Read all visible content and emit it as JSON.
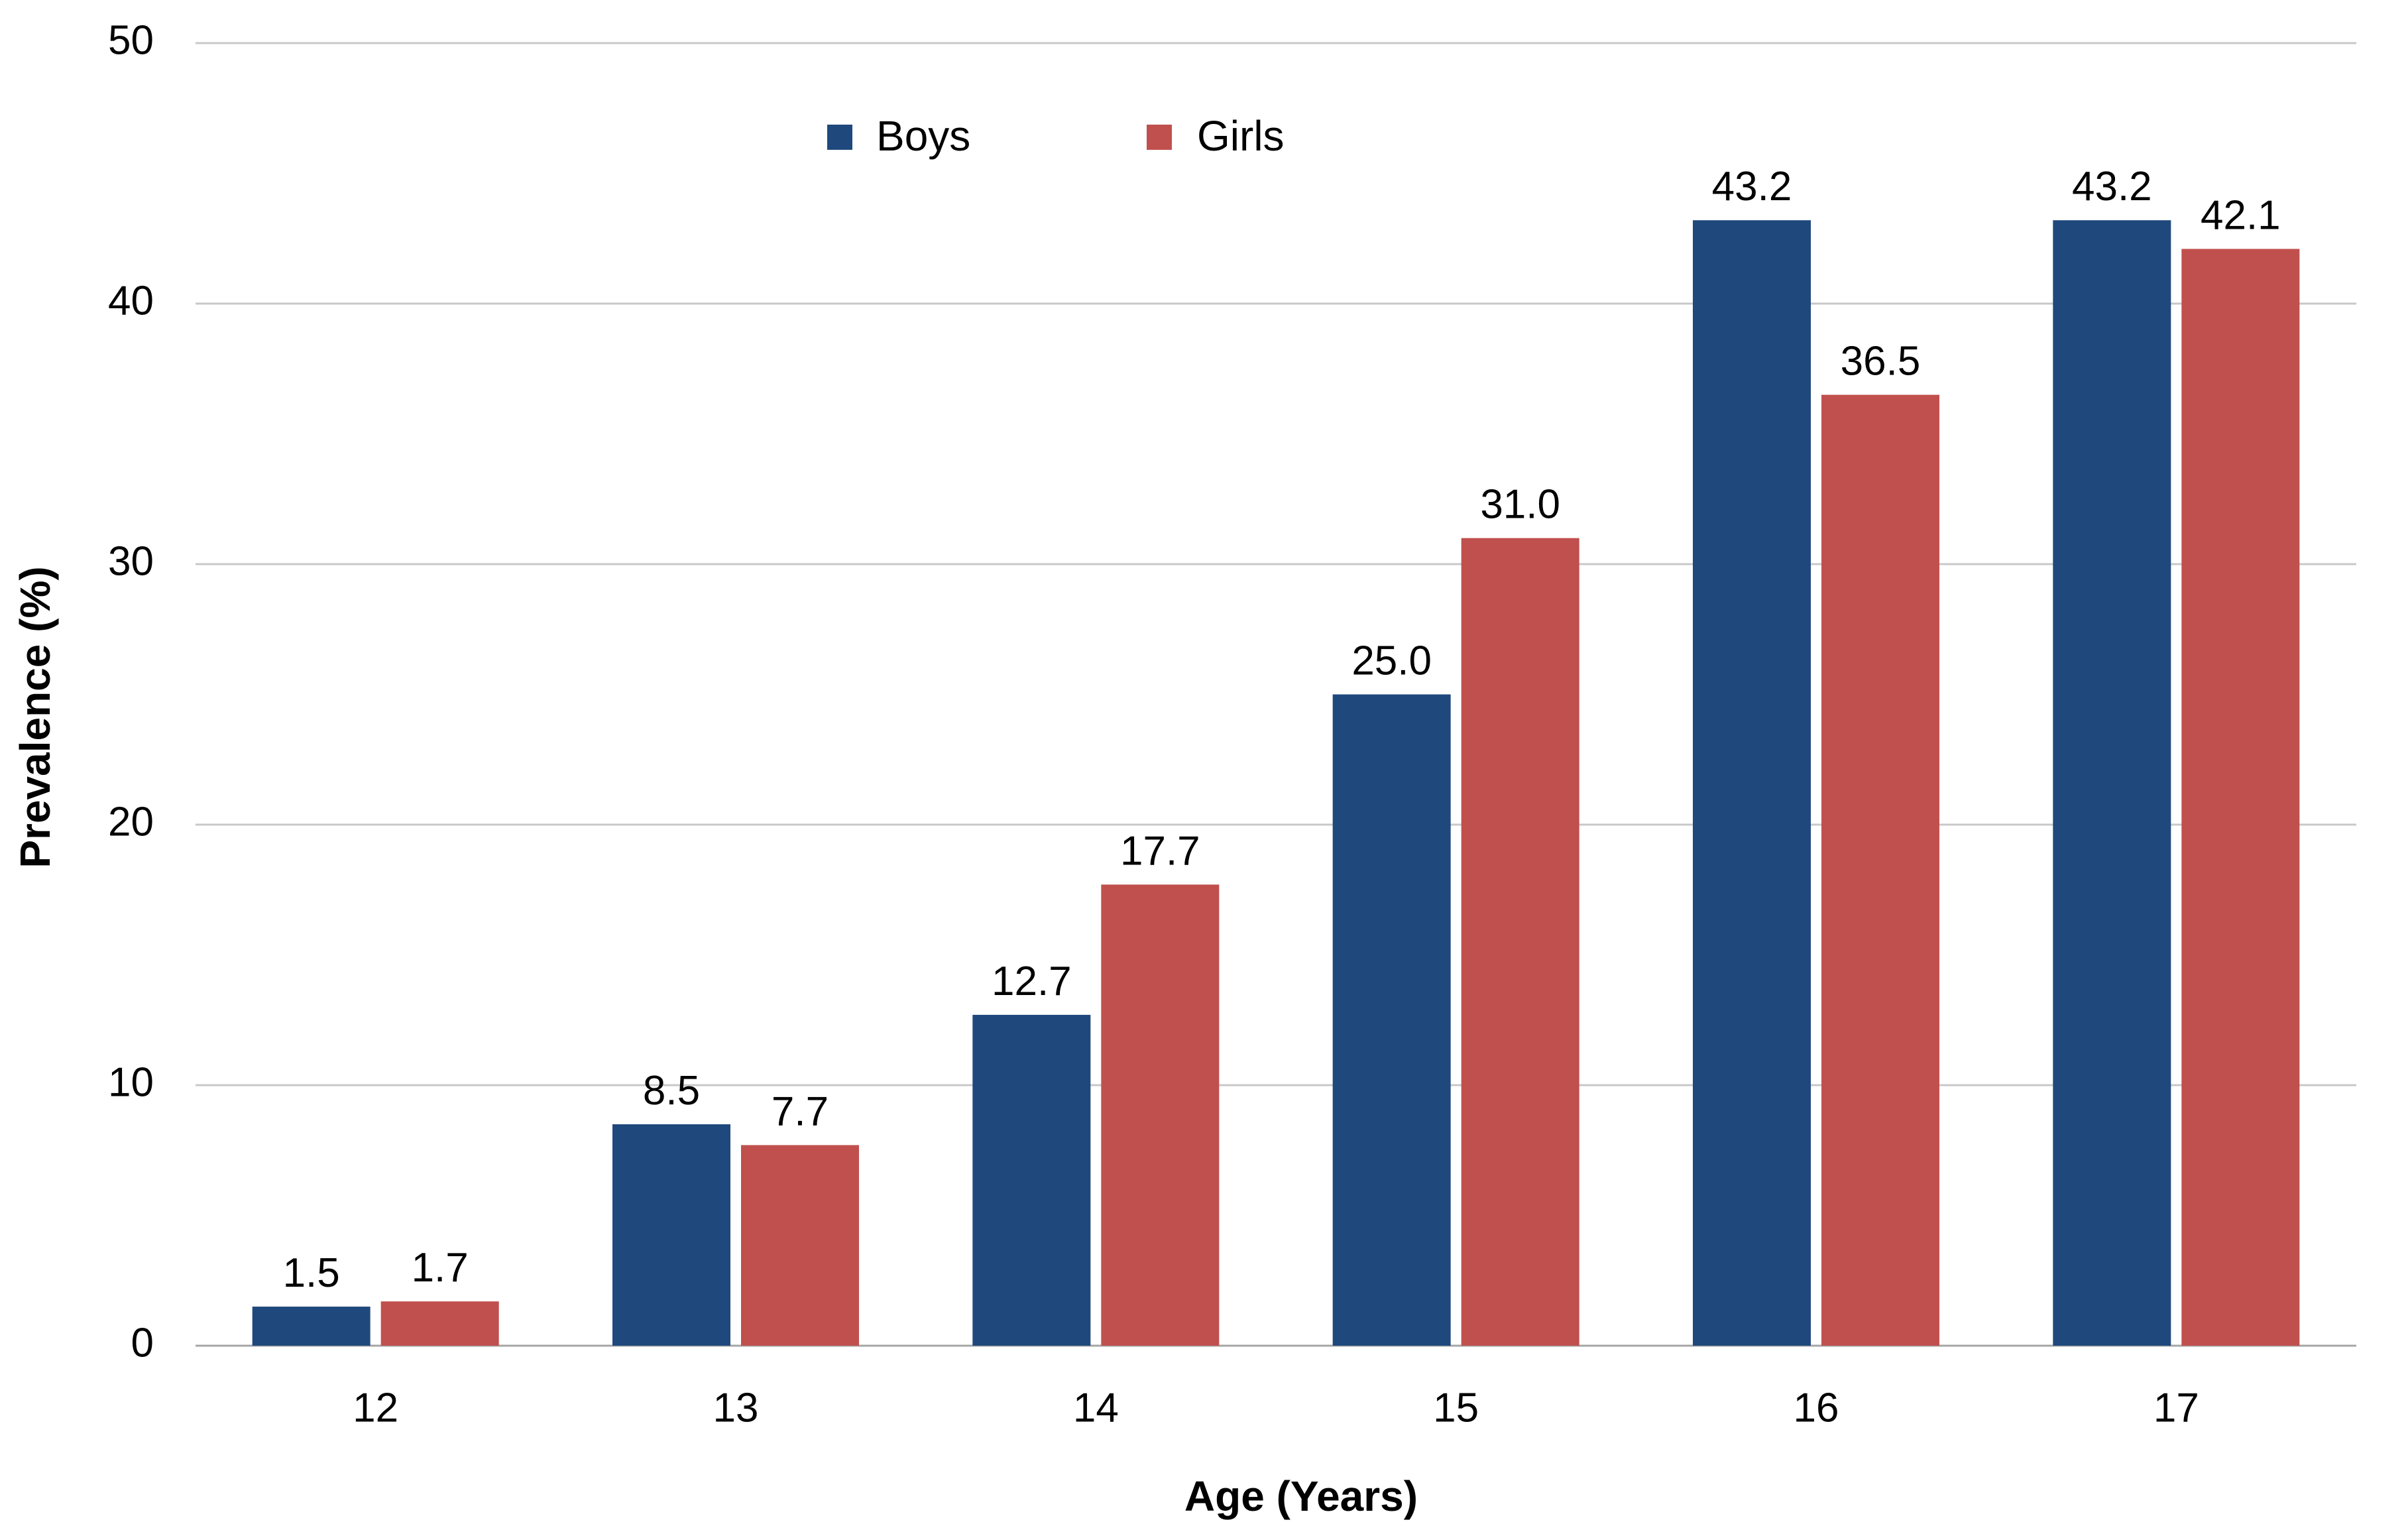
{
  "chart_data": {
    "type": "bar",
    "title": "",
    "xlabel": "Age (Years)",
    "ylabel": "Prevalence (%)",
    "categories": [
      "12",
      "13",
      "14",
      "15",
      "16",
      "17"
    ],
    "series": [
      {
        "name": "Boys",
        "color": "#1f497d",
        "values": [
          1.5,
          8.5,
          12.7,
          25.0,
          43.2,
          43.2
        ],
        "labels": [
          "1.5",
          "8.5",
          "12.7",
          "25.0",
          "43.2",
          "43.2"
        ]
      },
      {
        "name": "Girls",
        "color": "#c0504d",
        "values": [
          1.7,
          7.7,
          17.7,
          31.0,
          36.5,
          42.1
        ],
        "labels": [
          "1.7",
          "7.7",
          "17.7",
          "31.0",
          "36.5",
          "42.1"
        ]
      }
    ],
    "ylim": [
      0,
      50
    ],
    "yticks": [
      "0",
      "10",
      "20",
      "30",
      "40",
      "50"
    ],
    "grid": true,
    "legend_position": "top-center"
  }
}
